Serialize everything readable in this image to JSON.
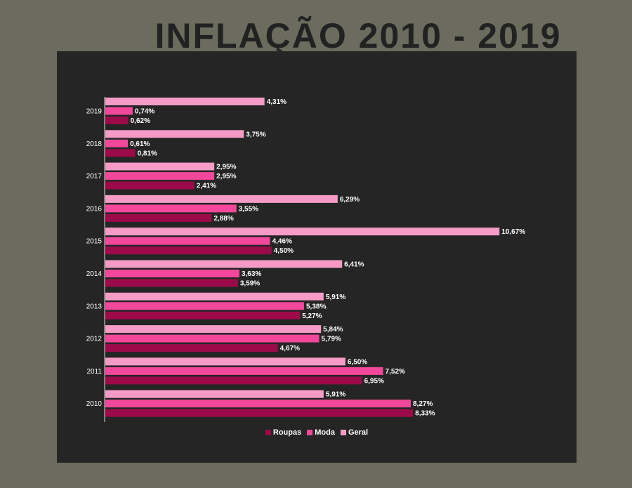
{
  "title": "INFLAÇÃO 2010 - 2019",
  "chart_data": {
    "type": "bar",
    "orientation": "horizontal",
    "categories": [
      "2019",
      "2018",
      "2017",
      "2016",
      "2015",
      "2014",
      "2013",
      "2012",
      "2011",
      "2010"
    ],
    "series": [
      {
        "name": "Geral",
        "color": "#f59bc6",
        "values": [
          4.31,
          3.75,
          2.95,
          6.29,
          10.67,
          6.41,
          5.91,
          5.84,
          6.5,
          5.91
        ],
        "labels": [
          "4,31%",
          "3,75%",
          "2,95%",
          "6,29%",
          "10,67%",
          "6,41%",
          "5,91%",
          "5,84%",
          "6,50%",
          "5,91%"
        ]
      },
      {
        "name": "Moda",
        "color": "#f2479a",
        "values": [
          0.74,
          0.61,
          2.95,
          3.55,
          4.46,
          3.63,
          5.38,
          5.79,
          7.52,
          8.27
        ],
        "labels": [
          "0,74%",
          "0,61%",
          "2,95%",
          "3,55%",
          "4,46%",
          "3,63%",
          "5,38%",
          "5,79%",
          "7,52%",
          "8,27%"
        ]
      },
      {
        "name": "Roupas",
        "color": "#9c0a49",
        "values": [
          0.62,
          0.81,
          2.41,
          2.88,
          4.5,
          3.59,
          5.27,
          4.67,
          6.95,
          8.33
        ],
        "labels": [
          "0,62%",
          "0,81%",
          "2,41%",
          "2,88%",
          "4,50%",
          "3,59%",
          "5,27%",
          "4,67%",
          "6,95%",
          "8,33%"
        ]
      }
    ],
    "legend": {
      "position": "bottom",
      "order": [
        "Roupas",
        "Moda",
        "Geral"
      ]
    },
    "xlim": [
      0,
      11
    ],
    "grid": false,
    "colors": {
      "background": "#252525",
      "page": "#6b6b5e",
      "title": "#222222",
      "text": "#ffffff"
    }
  }
}
